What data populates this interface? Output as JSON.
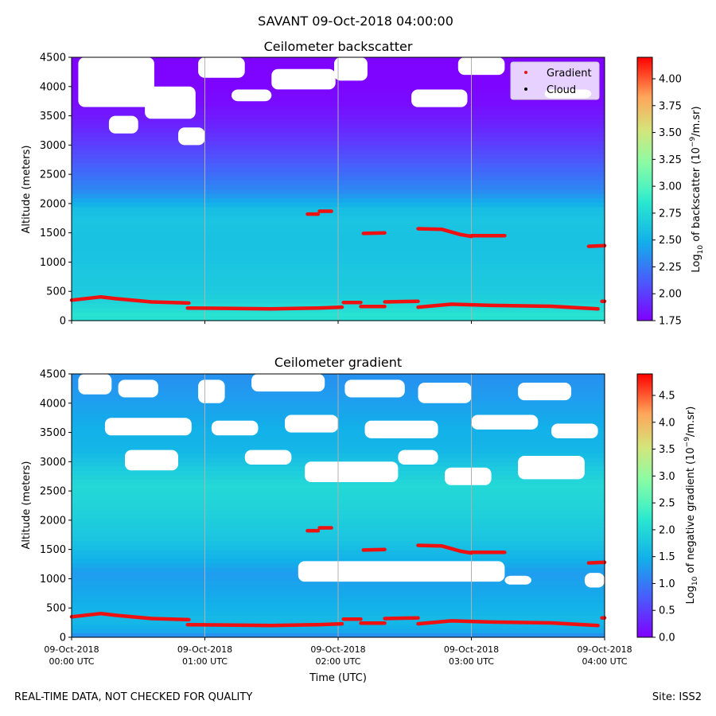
{
  "suptitle": "SAVANT 09-Oct-2018 04:00:00",
  "footer_left": "REAL-TIME DATA, NOT CHECKED FOR QUALITY",
  "footer_right": "Site: ISS2",
  "colors": {
    "gradient_marker": "#ee1111",
    "cloud_marker": "#000000",
    "gridline": "#b0b0b0"
  },
  "chart_data": [
    {
      "type": "heatmap",
      "title": "Ceilometer backscatter",
      "xlabel": "",
      "ylabel": "Altitude (meters)",
      "ylim": [
        0,
        4500
      ],
      "xlim_hours": [
        0,
        4
      ],
      "yticks": [
        0,
        500,
        1000,
        1500,
        2000,
        2500,
        3000,
        3500,
        4000,
        4500
      ],
      "ytick_labels": [
        "0",
        "500",
        "1000",
        "1500",
        "2000",
        "2500",
        "3000",
        "3500",
        "4000",
        "4500"
      ],
      "xtick_hours": [
        0,
        1,
        2,
        3,
        4
      ],
      "xtick_labels": [],
      "colorbar": {
        "label_pre": "Log",
        "label_sub": "10",
        "label_mid": " of backscatter (10",
        "label_sup": "−9",
        "label_post": "/m.sr)",
        "range": [
          1.75,
          4.2
        ],
        "ticks": [
          1.75,
          2.0,
          2.25,
          2.5,
          2.75,
          3.0,
          3.25,
          3.5,
          3.75,
          4.0
        ],
        "tick_labels": [
          "1.75",
          "2.00",
          "2.25",
          "2.50",
          "2.75",
          "3.00",
          "3.25",
          "3.50",
          "3.75",
          "4.00"
        ]
      },
      "field_profile": [
        [
          0,
          2.8
        ],
        [
          100,
          2.82
        ],
        [
          300,
          2.73
        ],
        [
          500,
          2.65
        ],
        [
          800,
          2.64
        ],
        [
          1100,
          2.61
        ],
        [
          1400,
          2.6
        ],
        [
          1700,
          2.62
        ],
        [
          1900,
          2.58
        ],
        [
          2200,
          2.33
        ],
        [
          2500,
          2.2
        ],
        [
          2800,
          2.08
        ],
        [
          3100,
          1.97
        ],
        [
          3400,
          1.88
        ],
        [
          3700,
          1.8
        ],
        [
          4000,
          1.77
        ],
        [
          4500,
          1.76
        ]
      ],
      "white_regions": [
        {
          "t": [
            0.05,
            0.62
          ],
          "z": [
            3650,
            4500
          ]
        },
        {
          "t": [
            0.55,
            0.93
          ],
          "z": [
            3450,
            4000
          ]
        },
        {
          "t": [
            0.28,
            0.5
          ],
          "z": [
            3200,
            3500
          ]
        },
        {
          "t": [
            0.8,
            1.0
          ],
          "z": [
            3000,
            3300
          ]
        },
        {
          "t": [
            0.95,
            1.3
          ],
          "z": [
            4150,
            4500
          ]
        },
        {
          "t": [
            1.5,
            1.98
          ],
          "z": [
            3950,
            4300
          ]
        },
        {
          "t": [
            1.2,
            1.5
          ],
          "z": [
            3750,
            3950
          ]
        },
        {
          "t": [
            1.97,
            2.22
          ],
          "z": [
            4100,
            4500
          ]
        },
        {
          "t": [
            2.55,
            2.97
          ],
          "z": [
            3650,
            3950
          ]
        },
        {
          "t": [
            2.9,
            3.25
          ],
          "z": [
            4200,
            4500
          ]
        },
        {
          "t": [
            3.55,
            3.9
          ],
          "z": [
            3800,
            3950
          ]
        }
      ],
      "gradient_segments": [
        {
          "t": [
            0.0,
            0.22,
            0.33,
            0.6,
            0.88
          ],
          "z": [
            350,
            405,
            375,
            320,
            300
          ]
        },
        {
          "t": [
            0.87,
            1.15,
            1.5,
            1.85,
            2.03
          ],
          "z": [
            215,
            210,
            200,
            215,
            230
          ]
        },
        {
          "t": [
            2.04,
            2.17
          ],
          "z": [
            310,
            310
          ]
        },
        {
          "t": [
            2.17,
            2.35
          ],
          "z": [
            240,
            240
          ]
        },
        {
          "t": [
            2.35,
            2.6
          ],
          "z": [
            320,
            330
          ]
        },
        {
          "t": [
            2.6,
            2.85,
            3.15,
            3.6,
            3.95
          ],
          "z": [
            230,
            280,
            260,
            245,
            200
          ]
        },
        {
          "t": [
            1.77,
            1.85
          ],
          "z": [
            1820,
            1820
          ]
        },
        {
          "t": [
            1.86,
            1.95
          ],
          "z": [
            1870,
            1870
          ]
        },
        {
          "t": [
            2.19,
            2.35
          ],
          "z": [
            1490,
            1500
          ]
        },
        {
          "t": [
            2.6,
            2.78,
            2.92,
            3.0
          ],
          "z": [
            1570,
            1560,
            1470,
            1440
          ]
        },
        {
          "t": [
            3.0,
            3.25
          ],
          "z": [
            1450,
            1450
          ]
        },
        {
          "t": [
            3.88,
            4.0
          ],
          "z": [
            1270,
            1280
          ]
        },
        {
          "t": [
            3.98,
            4.0
          ],
          "z": [
            330,
            330
          ]
        }
      ],
      "legend": {
        "position": "top-right",
        "entries": [
          {
            "label": "Gradient",
            "color": "#ee1111"
          },
          {
            "label": "Cloud",
            "color": "#000000"
          }
        ]
      }
    },
    {
      "type": "heatmap",
      "title": "Ceilometer gradient",
      "xlabel": "Time (UTC)",
      "ylabel": "Altitude (meters)",
      "ylim": [
        0,
        4500
      ],
      "xlim_hours": [
        0,
        4
      ],
      "yticks": [
        0,
        500,
        1000,
        1500,
        2000,
        2500,
        3000,
        3500,
        4000,
        4500
      ],
      "ytick_labels": [
        "0",
        "500",
        "1000",
        "1500",
        "2000",
        "2500",
        "3000",
        "3500",
        "4000",
        "4500"
      ],
      "xtick_hours": [
        0,
        1,
        2,
        3,
        4
      ],
      "xtick_labels": [
        {
          "date": "09-Oct-2018",
          "time": "00:00 UTC"
        },
        {
          "date": "09-Oct-2018",
          "time": "01:00 UTC"
        },
        {
          "date": "09-Oct-2018",
          "time": "02:00 UTC"
        },
        {
          "date": "09-Oct-2018",
          "time": "03:00 UTC"
        },
        {
          "date": "09-Oct-2018",
          "time": "04:00 UTC"
        }
      ],
      "colorbar": {
        "label_pre": "Log",
        "label_sub": "10",
        "label_mid": " of negative gradient (10",
        "label_sup": "−9",
        "label_post": "/m.sr)",
        "range": [
          0.0,
          4.9
        ],
        "ticks": [
          0.0,
          0.5,
          1.0,
          1.5,
          2.0,
          2.5,
          3.0,
          3.5,
          4.0,
          4.5
        ],
        "tick_labels": [
          "0.0",
          "0.5",
          "1.0",
          "1.5",
          "2.0",
          "2.5",
          "3.0",
          "3.5",
          "4.0",
          "4.5"
        ]
      },
      "field_profile": [
        [
          0,
          1.1
        ],
        [
          100,
          1.4
        ],
        [
          300,
          1.6
        ],
        [
          500,
          1.5
        ],
        [
          800,
          1.4
        ],
        [
          1100,
          1.3
        ],
        [
          1400,
          1.55
        ],
        [
          1700,
          1.75
        ],
        [
          2000,
          1.85
        ],
        [
          2300,
          1.95
        ],
        [
          2600,
          2.0
        ],
        [
          2900,
          1.8
        ],
        [
          3200,
          1.55
        ],
        [
          3500,
          1.5
        ],
        [
          3800,
          1.4
        ],
        [
          4100,
          1.3
        ],
        [
          4500,
          1.2
        ]
      ],
      "white_regions": [
        {
          "t": [
            1.7,
            3.25
          ],
          "z": [
            950,
            1300
          ]
        },
        {
          "t": [
            3.25,
            3.45
          ],
          "z": [
            900,
            1050
          ]
        },
        {
          "t": [
            3.85,
            4.0
          ],
          "z": [
            850,
            1100
          ]
        },
        {
          "t": [
            0.05,
            0.3
          ],
          "z": [
            4150,
            4500
          ]
        },
        {
          "t": [
            0.35,
            0.65
          ],
          "z": [
            4100,
            4400
          ]
        },
        {
          "t": [
            0.95,
            1.15
          ],
          "z": [
            4000,
            4400
          ]
        },
        {
          "t": [
            1.35,
            1.9
          ],
          "z": [
            4200,
            4500
          ]
        },
        {
          "t": [
            2.05,
            2.5
          ],
          "z": [
            4100,
            4400
          ]
        },
        {
          "t": [
            2.6,
            3.0
          ],
          "z": [
            4000,
            4350
          ]
        },
        {
          "t": [
            3.35,
            3.75
          ],
          "z": [
            4050,
            4350
          ]
        },
        {
          "t": [
            0.25,
            0.9
          ],
          "z": [
            3450,
            3750
          ]
        },
        {
          "t": [
            1.05,
            1.4
          ],
          "z": [
            3450,
            3700
          ]
        },
        {
          "t": [
            1.6,
            2.0
          ],
          "z": [
            3500,
            3800
          ]
        },
        {
          "t": [
            2.2,
            2.75
          ],
          "z": [
            3400,
            3700
          ]
        },
        {
          "t": [
            3.0,
            3.5
          ],
          "z": [
            3550,
            3800
          ]
        },
        {
          "t": [
            3.6,
            3.95
          ],
          "z": [
            3400,
            3650
          ]
        },
        {
          "t": [
            0.4,
            0.8
          ],
          "z": [
            2850,
            3200
          ]
        },
        {
          "t": [
            1.3,
            1.65
          ],
          "z": [
            2950,
            3200
          ]
        },
        {
          "t": [
            1.75,
            2.45
          ],
          "z": [
            2650,
            3000
          ]
        },
        {
          "t": [
            2.45,
            2.75
          ],
          "z": [
            2950,
            3200
          ]
        },
        {
          "t": [
            2.8,
            3.15
          ],
          "z": [
            2600,
            2900
          ]
        },
        {
          "t": [
            3.35,
            3.85
          ],
          "z": [
            2700,
            3100
          ]
        }
      ],
      "gradient_segments": [
        {
          "t": [
            0.0,
            0.22,
            0.33,
            0.6,
            0.88
          ],
          "z": [
            350,
            405,
            375,
            320,
            300
          ]
        },
        {
          "t": [
            0.87,
            1.15,
            1.5,
            1.85,
            2.03
          ],
          "z": [
            215,
            210,
            200,
            215,
            230
          ]
        },
        {
          "t": [
            2.04,
            2.17
          ],
          "z": [
            310,
            310
          ]
        },
        {
          "t": [
            2.17,
            2.35
          ],
          "z": [
            240,
            240
          ]
        },
        {
          "t": [
            2.35,
            2.6
          ],
          "z": [
            320,
            330
          ]
        },
        {
          "t": [
            2.6,
            2.85,
            3.15,
            3.6,
            3.95
          ],
          "z": [
            230,
            280,
            260,
            245,
            200
          ]
        },
        {
          "t": [
            1.77,
            1.85
          ],
          "z": [
            1820,
            1820
          ]
        },
        {
          "t": [
            1.86,
            1.95
          ],
          "z": [
            1870,
            1870
          ]
        },
        {
          "t": [
            2.19,
            2.35
          ],
          "z": [
            1490,
            1500
          ]
        },
        {
          "t": [
            2.6,
            2.78,
            2.92,
            3.0
          ],
          "z": [
            1570,
            1560,
            1470,
            1440
          ]
        },
        {
          "t": [
            3.0,
            3.25
          ],
          "z": [
            1450,
            1450
          ]
        },
        {
          "t": [
            3.88,
            4.0
          ],
          "z": [
            1270,
            1280
          ]
        },
        {
          "t": [
            3.98,
            4.0
          ],
          "z": [
            330,
            330
          ]
        }
      ]
    }
  ]
}
